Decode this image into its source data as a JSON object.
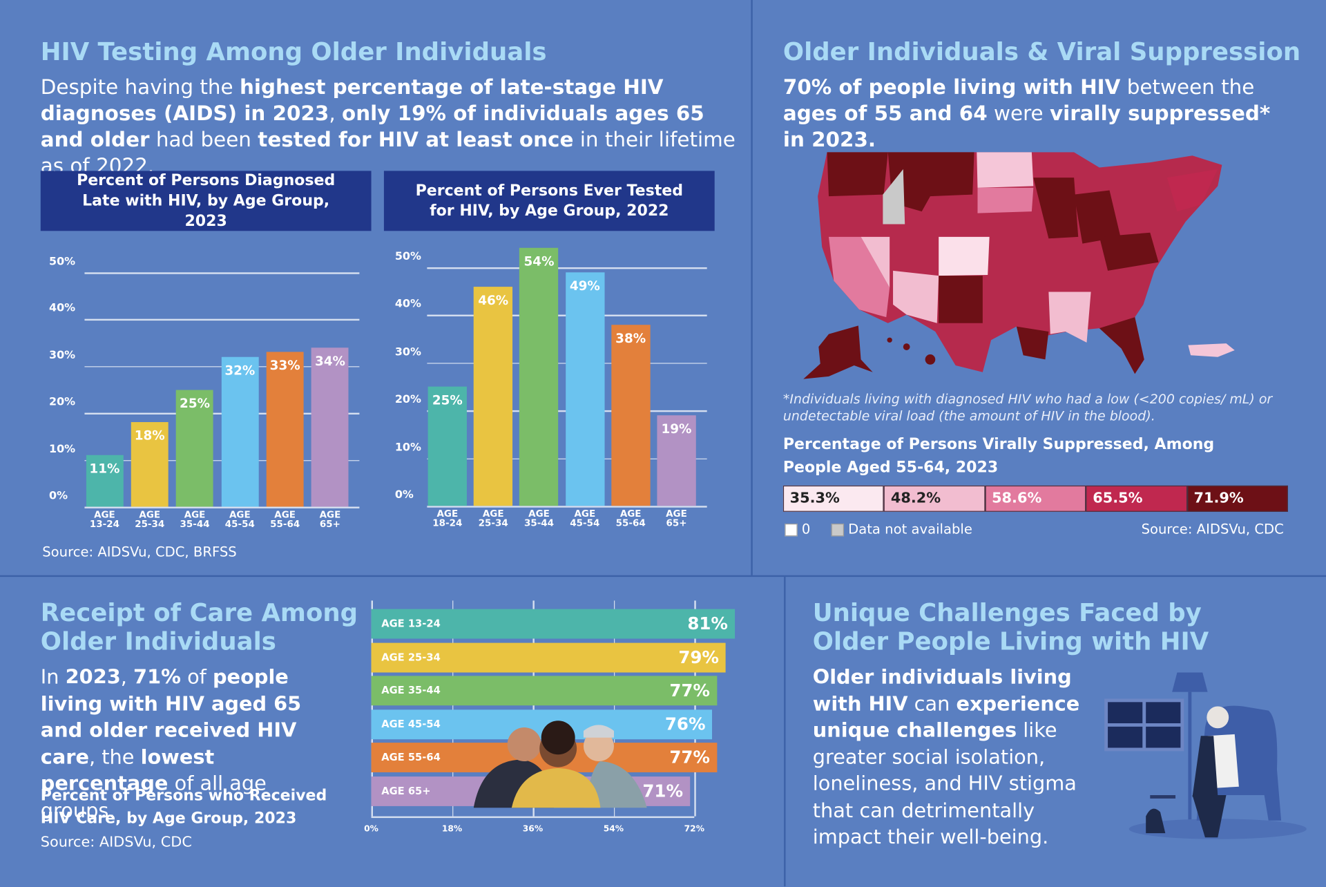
{
  "sections": {
    "testing": {
      "title": "HIV Testing Among Older Individuals",
      "paragraph": [
        {
          "text": "Despite having the ",
          "bold": false
        },
        {
          "text": "highest percentage of late-stage HIV diagnoses (AIDS) in 2023",
          "bold": true
        },
        {
          "text": ", ",
          "bold": false
        },
        {
          "text": "only 19% of individuals ages 65 and older",
          "bold": true
        },
        {
          "text": " had been ",
          "bold": false
        },
        {
          "text": "tested for HIV at least once",
          "bold": true
        },
        {
          "text": " in their lifetime as of 2022.",
          "bold": false
        }
      ],
      "source": "Source: AIDSVu, CDC, BRFSS"
    },
    "suppression": {
      "title": "Older Individuals & Viral Suppression",
      "paragraph": [
        {
          "text": "70% of people living with HIV",
          "bold": true
        },
        {
          "text": " between the ",
          "bold": false
        },
        {
          "text": "ages of 55 and 64",
          "bold": true
        },
        {
          "text": " were ",
          "bold": false
        },
        {
          "text": "virally suppressed* in 2023.",
          "bold": true
        }
      ],
      "footnote": "*Individuals living with diagnosed HIV who had a low (<200 copies/ mL) or undetectable viral load (the amount of HIV in the blood).",
      "source": "Source: AIDSVu, CDC"
    },
    "care": {
      "title": "Receipt of Care Among Older Individuals",
      "paragraph": [
        {
          "text": "In ",
          "bold": false
        },
        {
          "text": "2023",
          "bold": true
        },
        {
          "text": ", ",
          "bold": false
        },
        {
          "text": "71%",
          "bold": true
        },
        {
          "text": " of ",
          "bold": false
        },
        {
          "text": "people living with HIV aged 65 and older received HIV care",
          "bold": true
        },
        {
          "text": ", the ",
          "bold": false
        },
        {
          "text": "lowest percentage",
          "bold": true
        },
        {
          "text": " of all age groups.",
          "bold": false
        }
      ],
      "source": "Source: AIDSVu, CDC"
    },
    "challenges": {
      "title": "Unique Challenges Faced by Older People Living with HIV",
      "paragraph": [
        {
          "text": "Older individuals living with HIV",
          "bold": true
        },
        {
          "text": " can ",
          "bold": false
        },
        {
          "text": "experience unique challenges",
          "bold": true
        },
        {
          "text": " like greater social isolation, loneliness, and HIV stigma that can detrimentally impact their well-being.",
          "bold": false
        }
      ]
    }
  },
  "chart_data": [
    {
      "type": "bar",
      "title": "Percent of Persons Diagnosed Late with HIV, by Age Group, 2023",
      "categories": [
        "AGE 13-24",
        "AGE 25-34",
        "AGE 35-44",
        "AGE 45-54",
        "AGE 55-64",
        "AGE 65+"
      ],
      "values": [
        11,
        18,
        25,
        32,
        33,
        34
      ],
      "value_labels": [
        "11%",
        "18%",
        "25%",
        "32%",
        "33%",
        "34%"
      ],
      "colors": [
        "#4db5aa",
        "#e9c441",
        "#7bbd68",
        "#6bc3ef",
        "#e3803b",
        "#b292c4"
      ],
      "ylim": [
        0,
        50
      ],
      "yticks": [
        {
          "value": 0,
          "label": "0%"
        },
        {
          "value": 10,
          "label": "10%"
        },
        {
          "value": 20,
          "label": "20%"
        },
        {
          "value": 30,
          "label": "30%"
        },
        {
          "value": 40,
          "label": "40%"
        },
        {
          "value": 50,
          "label": "50%"
        }
      ],
      "grid": true
    },
    {
      "type": "bar",
      "title": "Percent of Persons Ever Tested for HIV, by Age Group, 2022",
      "categories": [
        "AGE 18-24",
        "AGE 25-34",
        "AGE 35-44",
        "AGE 45-54",
        "AGE 55-64",
        "AGE 65+"
      ],
      "values": [
        25,
        46,
        54,
        49,
        38,
        19
      ],
      "value_labels": [
        "25%",
        "46%",
        "54%",
        "49%",
        "38%",
        "19%"
      ],
      "colors": [
        "#4db5aa",
        "#e9c441",
        "#7bbd68",
        "#6bc3ef",
        "#e3803b",
        "#b292c4"
      ],
      "ylim": [
        0,
        50
      ],
      "yticks": [
        {
          "value": 0,
          "label": "0%"
        },
        {
          "value": 10,
          "label": "10%"
        },
        {
          "value": 20,
          "label": "20%"
        },
        {
          "value": 30,
          "label": "30%"
        },
        {
          "value": 40,
          "label": "40%"
        },
        {
          "value": 50,
          "label": "50%"
        }
      ],
      "grid": true
    },
    {
      "type": "map",
      "title": "Percentage of Persons Virally Suppressed, Among People Aged 55-64, 2023",
      "legend": {
        "values": [
          35.3,
          48.2,
          58.6,
          65.5,
          71.9
        ],
        "value_labels": [
          "35.3%",
          "48.2%",
          "58.6%",
          "65.5%",
          "71.9%"
        ],
        "colors": [
          "#fbe9f0",
          "#f2bdd0",
          "#e27a9e",
          "#c0284f",
          "#6d1016"
        ],
        "text_colors": [
          "#222",
          "#222",
          "#fff",
          "#fff",
          "#fff"
        ]
      },
      "zero_label": "0",
      "zero_color": "#ffffff",
      "na_label": "Data not available",
      "na_color": "#c9c9c9"
    },
    {
      "type": "hbar",
      "title": "Percent of Persons who Received HIV Care, by Age Group, 2023",
      "categories": [
        "AGE 13-24",
        "AGE 25-34",
        "AGE 35-44",
        "AGE 45-54",
        "AGE 55-64",
        "AGE 65+"
      ],
      "values": [
        81,
        79,
        77,
        76,
        77,
        71
      ],
      "value_labels": [
        "81%",
        "79%",
        "77%",
        "76%",
        "77%",
        "71%"
      ],
      "colors": [
        "#4db5aa",
        "#e9c441",
        "#7bbd68",
        "#6bc3ef",
        "#e3803b",
        "#b292c4"
      ],
      "xlim": [
        0,
        72
      ],
      "xticks": [
        {
          "value": 0,
          "label": "0%"
        },
        {
          "value": 18,
          "label": "18%"
        },
        {
          "value": 36,
          "label": "36%"
        },
        {
          "value": 54,
          "label": "54%"
        },
        {
          "value": 72,
          "label": "72%"
        }
      ],
      "grid": true
    }
  ]
}
